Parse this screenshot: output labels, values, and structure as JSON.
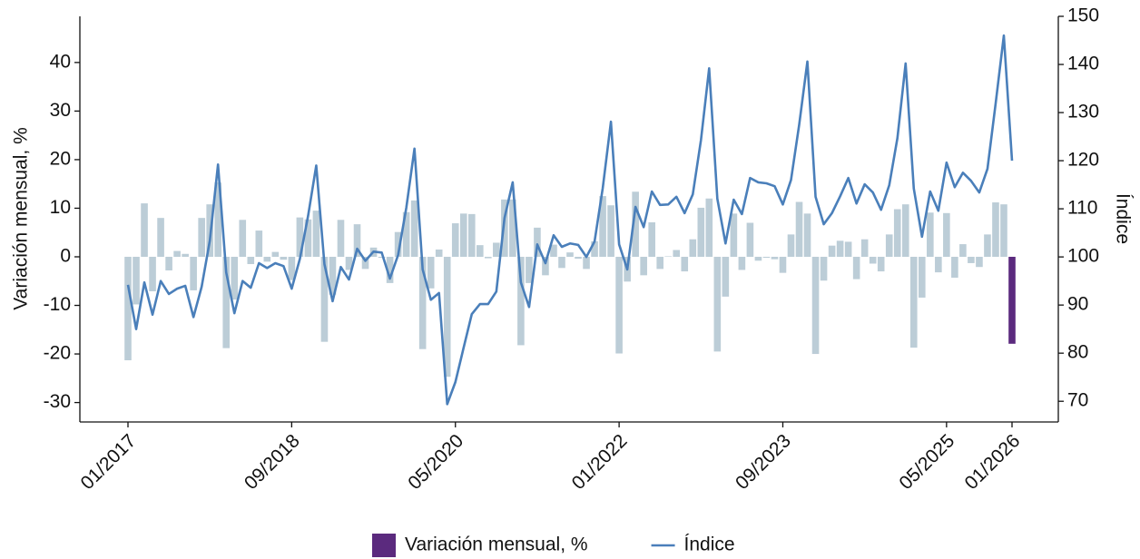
{
  "chart_data": {
    "type": "bar",
    "y_label": "Variación mensual, %",
    "y2_label": "Índice",
    "categories": [
      "01/2017",
      null,
      null,
      null,
      null,
      null,
      null,
      null,
      null,
      null,
      null,
      null,
      null,
      null,
      null,
      null,
      null,
      null,
      null,
      null,
      "09/2018",
      null,
      null,
      null,
      null,
      null,
      null,
      null,
      null,
      null,
      null,
      null,
      null,
      null,
      null,
      null,
      null,
      null,
      null,
      null,
      "05/2020",
      null,
      null,
      null,
      null,
      null,
      null,
      null,
      null,
      null,
      null,
      null,
      null,
      null,
      null,
      null,
      null,
      null,
      null,
      null,
      "01/2022",
      null,
      null,
      null,
      null,
      null,
      null,
      null,
      null,
      null,
      null,
      null,
      null,
      null,
      null,
      null,
      null,
      null,
      null,
      null,
      "09/2023",
      null,
      null,
      null,
      null,
      null,
      null,
      null,
      null,
      null,
      null,
      null,
      null,
      null,
      null,
      null,
      null,
      null,
      null,
      null,
      "05/2025",
      null,
      null,
      null,
      null,
      null,
      null,
      null,
      "01/2026"
    ],
    "series": [
      {
        "name": "Variación mensual, %",
        "type": "bar",
        "color": "#5b2a7e",
        "base_color": "#bccdd7",
        "highlight_last": true,
        "values": [
          -21.3,
          -9.8,
          11.0,
          -7.1,
          8.0,
          -2.8,
          1.2,
          0.6,
          -6.9,
          8.0,
          10.8,
          15.3,
          -18.8,
          -8.8,
          7.6,
          -1.5,
          5.4,
          -1.0,
          1.0,
          -0.6,
          -4.8,
          8.1,
          7.7,
          9.5,
          -17.5,
          -7.8,
          7.6,
          -2.7,
          6.7,
          -2.5,
          1.9,
          -0.2,
          -5.4,
          5.1,
          9.2,
          11.6,
          -19.0,
          -6.5,
          1.5,
          -24.7,
          6.9,
          8.9,
          8.8,
          2.4,
          -0.3,
          2.9,
          11.8,
          11.8,
          -18.2,
          -5.4,
          6.0,
          -3.8,
          2.5,
          -2.3,
          0.9,
          -0.4,
          -2.5,
          3.2,
          12.5,
          10.6,
          -19.9,
          -5.1,
          13.4,
          -3.8,
          7.1,
          -2.5,
          0.1,
          1.4,
          -3.0,
          3.6,
          10.1,
          12.0,
          -19.5,
          -8.2,
          8.9,
          -2.7,
          7.0,
          -0.8,
          -0.2,
          -0.5,
          -3.3,
          4.6,
          11.3,
          8.9,
          -20.0,
          -4.9,
          2.3,
          3.3,
          3.1,
          -4.6,
          3.6,
          -1.4,
          -3.0,
          4.6,
          9.8,
          10.8,
          -18.7,
          -8.4,
          9.1,
          -3.2,
          9.0,
          -4.3,
          2.6,
          -1.3,
          -2.1,
          4.6,
          11.2,
          10.8,
          -17.9
        ]
      },
      {
        "name": "Índice",
        "type": "line",
        "axis": "y2",
        "color": "#4a7fba",
        "values": [
          94.2,
          85,
          94.7,
          88,
          95,
          92.3,
          93.4,
          94,
          87.5,
          93.8,
          103.4,
          119.2,
          96.8,
          88.3,
          95,
          93.6,
          98.7,
          97.7,
          98.7,
          98.1,
          93.4,
          99.6,
          108.5,
          119,
          98.5,
          90.8,
          97.9,
          95.3,
          101.7,
          99.2,
          101.1,
          100.9,
          95.5,
          100.4,
          110.2,
          122.5,
          97.4,
          91.1,
          92.5,
          69.4,
          74,
          81.1,
          88.1,
          90.2,
          90.2,
          92.8,
          108.1,
          115.5,
          94.7,
          89.6,
          102.6,
          98.7,
          104.5,
          102.1,
          102.8,
          102.5,
          100,
          103.2,
          114.3,
          128.1,
          102.6,
          97.4,
          110.4,
          106.2,
          113.6,
          110.8,
          110.9,
          112.5,
          109.1,
          113,
          124.3,
          139.2,
          112.1,
          102.8,
          111.9,
          108.9,
          116.4,
          115.5,
          115.3,
          114.7,
          110.9,
          116,
          127.5,
          140.6,
          112.5,
          106.8,
          109.1,
          112.6,
          116.4,
          111.1,
          115.1,
          113.4,
          109.8,
          114.9,
          124.7,
          140.2,
          114.2,
          104.2,
          113.6,
          109.6,
          119.6,
          114.5,
          117.5,
          115.8,
          113.4,
          118.3,
          131.9,
          146,
          120
        ]
      }
    ],
    "ylim": [
      -34,
      49.5
    ],
    "yticks": [
      -30,
      -20,
      -10,
      0,
      10,
      20,
      30,
      40
    ],
    "y2lim": [
      65.7,
      150
    ],
    "y2ticks": [
      70,
      80,
      90,
      100,
      110,
      120,
      130,
      140,
      150
    ],
    "grid": false,
    "legend": "bottom"
  }
}
